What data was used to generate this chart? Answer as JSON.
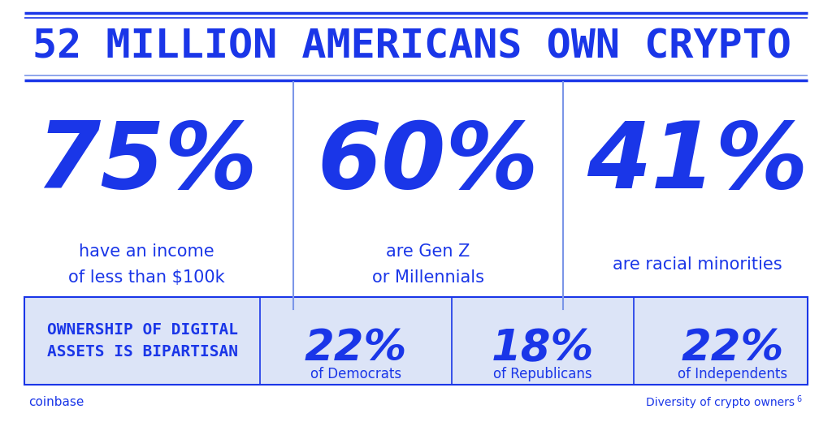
{
  "title": "52 MILLION AMERICANS OWN CRYPTO",
  "bg_color": "#FFFFFF",
  "blue_color": "#1A36E8",
  "light_blue_bg": "#DCE4F7",
  "line_color": "#7B96E8",
  "stats": [
    {
      "value": "75%",
      "desc": "have an income\nof less than $100k"
    },
    {
      "value": "60%",
      "desc": "are Gen Z\nor Millennials"
    },
    {
      "value": "41%",
      "desc": "are racial minorities"
    }
  ],
  "bottom_label": "OWNERSHIP OF DIGITAL\nASSETS IS BIPARTISAN",
  "bottom_stats": [
    {
      "value": "22%",
      "desc": "of Democrats"
    },
    {
      "value": "18%",
      "desc": "of Republicans"
    },
    {
      "value": "22%",
      "desc": "of Independents"
    }
  ],
  "footer_left": "coinbase",
  "footer_right": "Diversity of crypto owners",
  "footer_superscript": "6",
  "fig_width": 10.24,
  "fig_height": 5.36,
  "dpi": 100
}
